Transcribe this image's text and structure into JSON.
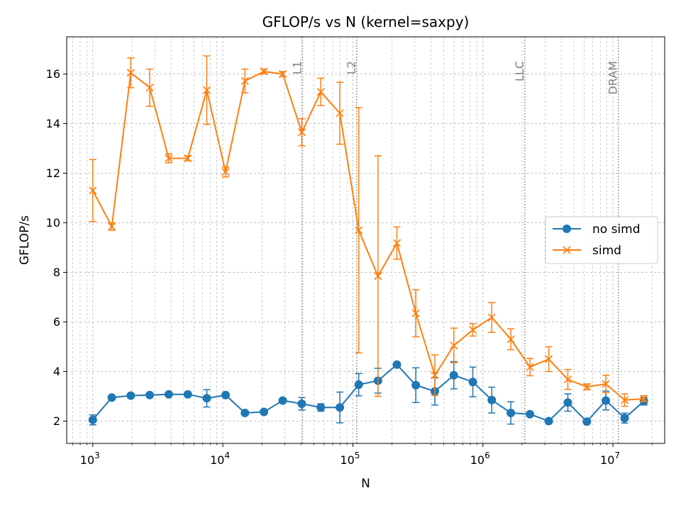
{
  "chart_data": {
    "type": "line",
    "title": "GFLOP/s vs N (kernel=saxpy)",
    "xlabel": "N",
    "ylabel": "GFLOP/s",
    "xscale": "log",
    "xlim": [
      630,
      25000000
    ],
    "ylim": [
      1.1,
      17.5
    ],
    "grid": true,
    "legend_position": "center-right",
    "x_tick_labels": [
      "10^3",
      "10^4",
      "10^5",
      "10^6",
      "10^7"
    ],
    "y_ticks": [
      2,
      4,
      6,
      8,
      10,
      12,
      14,
      16
    ],
    "reference_lines": [
      {
        "label": "L1",
        "x": 41000
      },
      {
        "label": "L2",
        "x": 107000
      },
      {
        "label": "LLC",
        "x": 2100000
      },
      {
        "label": "DRAM",
        "x": 11000000
      }
    ],
    "x": [
      1000,
      1400,
      1960,
      2740,
      3840,
      5380,
      7530,
      10500,
      14800,
      20700,
      28900,
      40500,
      56700,
      79400,
      111000,
      156000,
      218000,
      305000,
      427000,
      598000,
      837000,
      1170000,
      1640000,
      2300000,
      3210000,
      4500000,
      6300000,
      8820000,
      12300000,
      17300000
    ],
    "series": [
      {
        "name": "no simd",
        "color": "#1f77b4",
        "marker": "circle",
        "values": [
          2.05,
          2.95,
          3.03,
          3.05,
          3.08,
          3.08,
          2.92,
          3.05,
          2.33,
          2.37,
          2.83,
          2.7,
          2.55,
          2.55,
          3.47,
          3.63,
          4.28,
          3.45,
          3.2,
          3.85,
          3.58,
          2.85,
          2.33,
          2.28,
          2.0,
          2.75,
          1.98,
          2.83,
          2.12,
          2.8
        ],
        "errors": [
          0.2,
          0.05,
          0.05,
          0.05,
          0.05,
          0.05,
          0.35,
          0.05,
          0.05,
          0.05,
          0.05,
          0.25,
          0.15,
          0.62,
          0.45,
          0.5,
          0.05,
          0.7,
          0.55,
          0.55,
          0.6,
          0.52,
          0.45,
          0.05,
          0.05,
          0.35,
          0.05,
          0.38,
          0.2,
          0.15
        ]
      },
      {
        "name": "simd",
        "color": "#ff7f0e",
        "marker": "x",
        "values": [
          11.3,
          9.85,
          16.05,
          15.45,
          12.6,
          12.6,
          15.35,
          12.05,
          15.72,
          16.1,
          16.0,
          13.65,
          15.28,
          14.42,
          9.7,
          7.85,
          9.18,
          6.35,
          3.85,
          5.05,
          5.68,
          6.18,
          5.3,
          4.18,
          4.5,
          3.68,
          3.38,
          3.5,
          2.85,
          2.9
        ],
        "errors": [
          1.25,
          0.15,
          0.6,
          0.75,
          0.18,
          0.1,
          1.38,
          0.2,
          0.48,
          0.1,
          0.1,
          0.55,
          0.55,
          1.25,
          4.95,
          4.85,
          0.65,
          0.95,
          0.82,
          0.7,
          0.25,
          0.6,
          0.42,
          0.35,
          0.5,
          0.4,
          0.12,
          0.35,
          0.25,
          0.12
        ]
      }
    ]
  }
}
